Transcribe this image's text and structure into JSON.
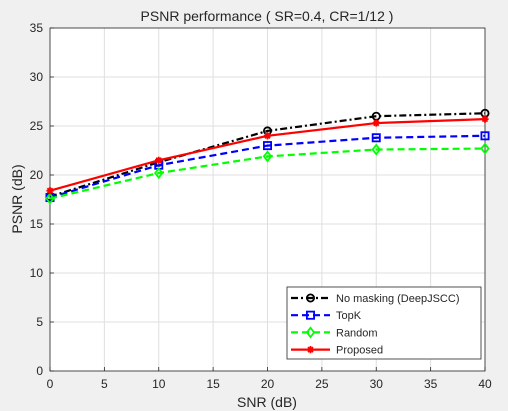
{
  "chart_data": {
    "type": "line",
    "title": "PSNR performance ( SR=0.4, CR=1/12 )",
    "xlabel": "SNR (dB)",
    "ylabel": "PSNR (dB)",
    "xlim": [
      0,
      40
    ],
    "ylim": [
      0,
      35
    ],
    "xticks": [
      0,
      5,
      10,
      15,
      20,
      25,
      30,
      35,
      40
    ],
    "yticks": [
      0,
      5,
      10,
      15,
      20,
      25,
      30,
      35
    ],
    "grid": true,
    "legend_position": "bottom-right",
    "x": [
      0,
      10,
      20,
      30,
      40
    ],
    "series": [
      {
        "name": "No masking (DeepJSCC)",
        "values": [
          17.8,
          21.3,
          24.5,
          26.0,
          26.3
        ],
        "color": "#000000",
        "line_style": "dash-dot",
        "marker": "circle"
      },
      {
        "name": "TopK",
        "values": [
          17.7,
          21.0,
          23.0,
          23.8,
          24.0
        ],
        "color": "#0000ff",
        "line_style": "dashed",
        "marker": "square"
      },
      {
        "name": "Random",
        "values": [
          17.6,
          20.2,
          21.9,
          22.6,
          22.7
        ],
        "color": "#00ff00",
        "line_style": "dashed",
        "marker": "diamond"
      },
      {
        "name": "Proposed",
        "values": [
          18.4,
          21.5,
          24.0,
          25.3,
          25.7
        ],
        "color": "#ff0000",
        "line_style": "solid",
        "marker": "asterisk"
      }
    ]
  }
}
